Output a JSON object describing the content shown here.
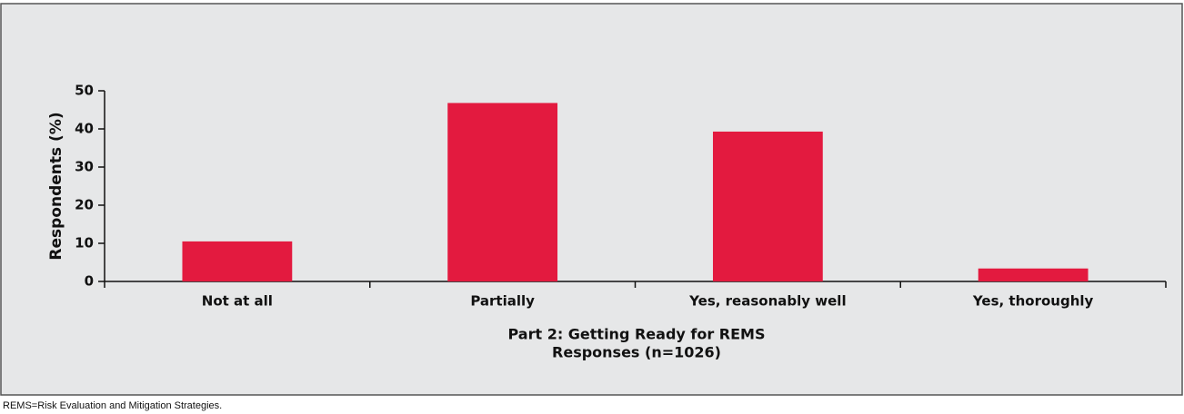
{
  "chart_data": {
    "type": "bar",
    "categories": [
      "Not at all",
      "Partially",
      "Yes, reasonably well",
      "Yes, thoroughly"
    ],
    "values": [
      10.5,
      46.8,
      39.3,
      3.4
    ],
    "color": "#e31a3f",
    "ylabel": "Respondents (%)",
    "xlabel": [
      "Part 2: Getting Ready for REMS",
      "Responses (n=1026)"
    ],
    "ylim": [
      0,
      50
    ],
    "yticks": [
      0,
      10,
      20,
      30,
      40,
      50
    ],
    "footnote": "REMS=Risk Evaluation and Mitigation Strategies."
  }
}
